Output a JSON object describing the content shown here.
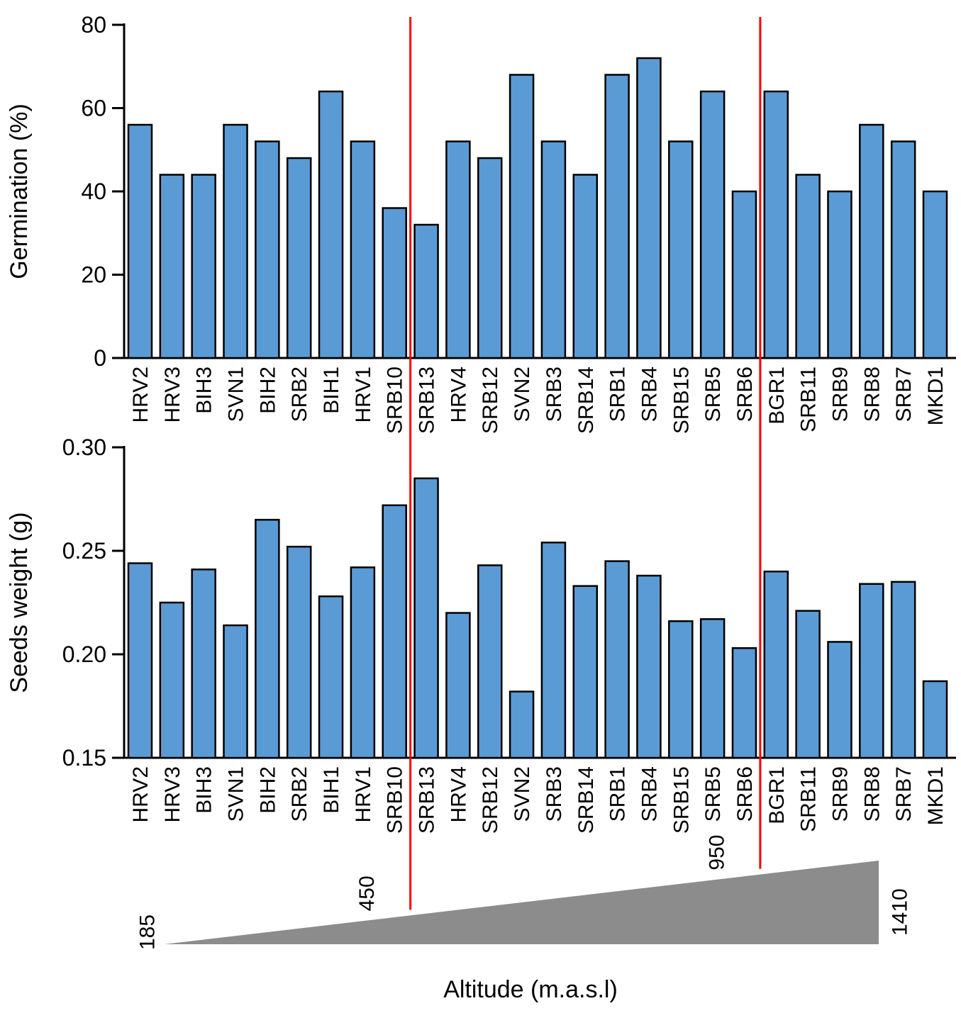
{
  "colors": {
    "bar_fill": "#5B9BD5",
    "bar_stroke": "#000000",
    "axis": "#000000",
    "red_line": "#FF0000",
    "triangle": "#8C8C8C",
    "text": "#000000",
    "background": "#FFFFFF"
  },
  "chart_data": [
    {
      "type": "bar",
      "title": "",
      "xlabel": "",
      "ylabel": "Germination (%)",
      "ylim": [
        0,
        80
      ],
      "ytick_values": [
        0,
        20,
        40,
        60,
        80
      ],
      "yticks": [
        "0",
        "20",
        "40",
        "60",
        "80"
      ],
      "grid": false,
      "legend": null,
      "categories": [
        "HRV2",
        "HRV3",
        "BIH3",
        "SVN1",
        "BIH2",
        "SRB2",
        "BIH1",
        "HRV1",
        "SRB10",
        "SRB13",
        "HRV4",
        "SRB12",
        "SVN2",
        "SRB3",
        "SRB14",
        "SRB1",
        "SRB4",
        "SRB15",
        "SRB5",
        "SRB6",
        "BGR1",
        "SRB11",
        "SRB9",
        "SRB8",
        "SRB7",
        "MKD1"
      ],
      "values": [
        56,
        44,
        44,
        56,
        52,
        48,
        64,
        52,
        36,
        32,
        52,
        48,
        68,
        52,
        44,
        68,
        72,
        52,
        64,
        40,
        64,
        44,
        40,
        56,
        52,
        40
      ]
    },
    {
      "type": "bar",
      "title": "",
      "xlabel": "",
      "ylabel": "Seeds weight (g)",
      "ylim": [
        0.15,
        0.3
      ],
      "ytick_values": [
        0.15,
        0.2,
        0.25,
        0.3
      ],
      "yticks": [
        "0.15",
        "0.20",
        "0.25",
        "0.30"
      ],
      "grid": false,
      "legend": null,
      "categories": [
        "HRV2",
        "HRV3",
        "BIH3",
        "SVN1",
        "BIH2",
        "SRB2",
        "BIH1",
        "HRV1",
        "SRB10",
        "SRB13",
        "HRV4",
        "SRB12",
        "SVN2",
        "SRB3",
        "SRB14",
        "SRB1",
        "SRB4",
        "SRB15",
        "SRB5",
        "SRB6",
        "BGR1",
        "SRB11",
        "SRB9",
        "SRB8",
        "SRB7",
        "MKD1"
      ],
      "values": [
        0.244,
        0.225,
        0.241,
        0.214,
        0.265,
        0.252,
        0.228,
        0.242,
        0.272,
        0.285,
        0.22,
        0.243,
        0.182,
        0.254,
        0.233,
        0.245,
        0.238,
        0.216,
        0.217,
        0.203,
        0.24,
        0.221,
        0.206,
        0.234,
        0.235,
        0.187
      ]
    }
  ],
  "altitude_gradient": {
    "label": "Altitude (m.a.s.l)",
    "start_value": "185",
    "end_value": "1410",
    "threshold_values": [
      "450",
      "950"
    ],
    "threshold_after_categories": [
      "SRB10",
      "SRB6"
    ]
  }
}
